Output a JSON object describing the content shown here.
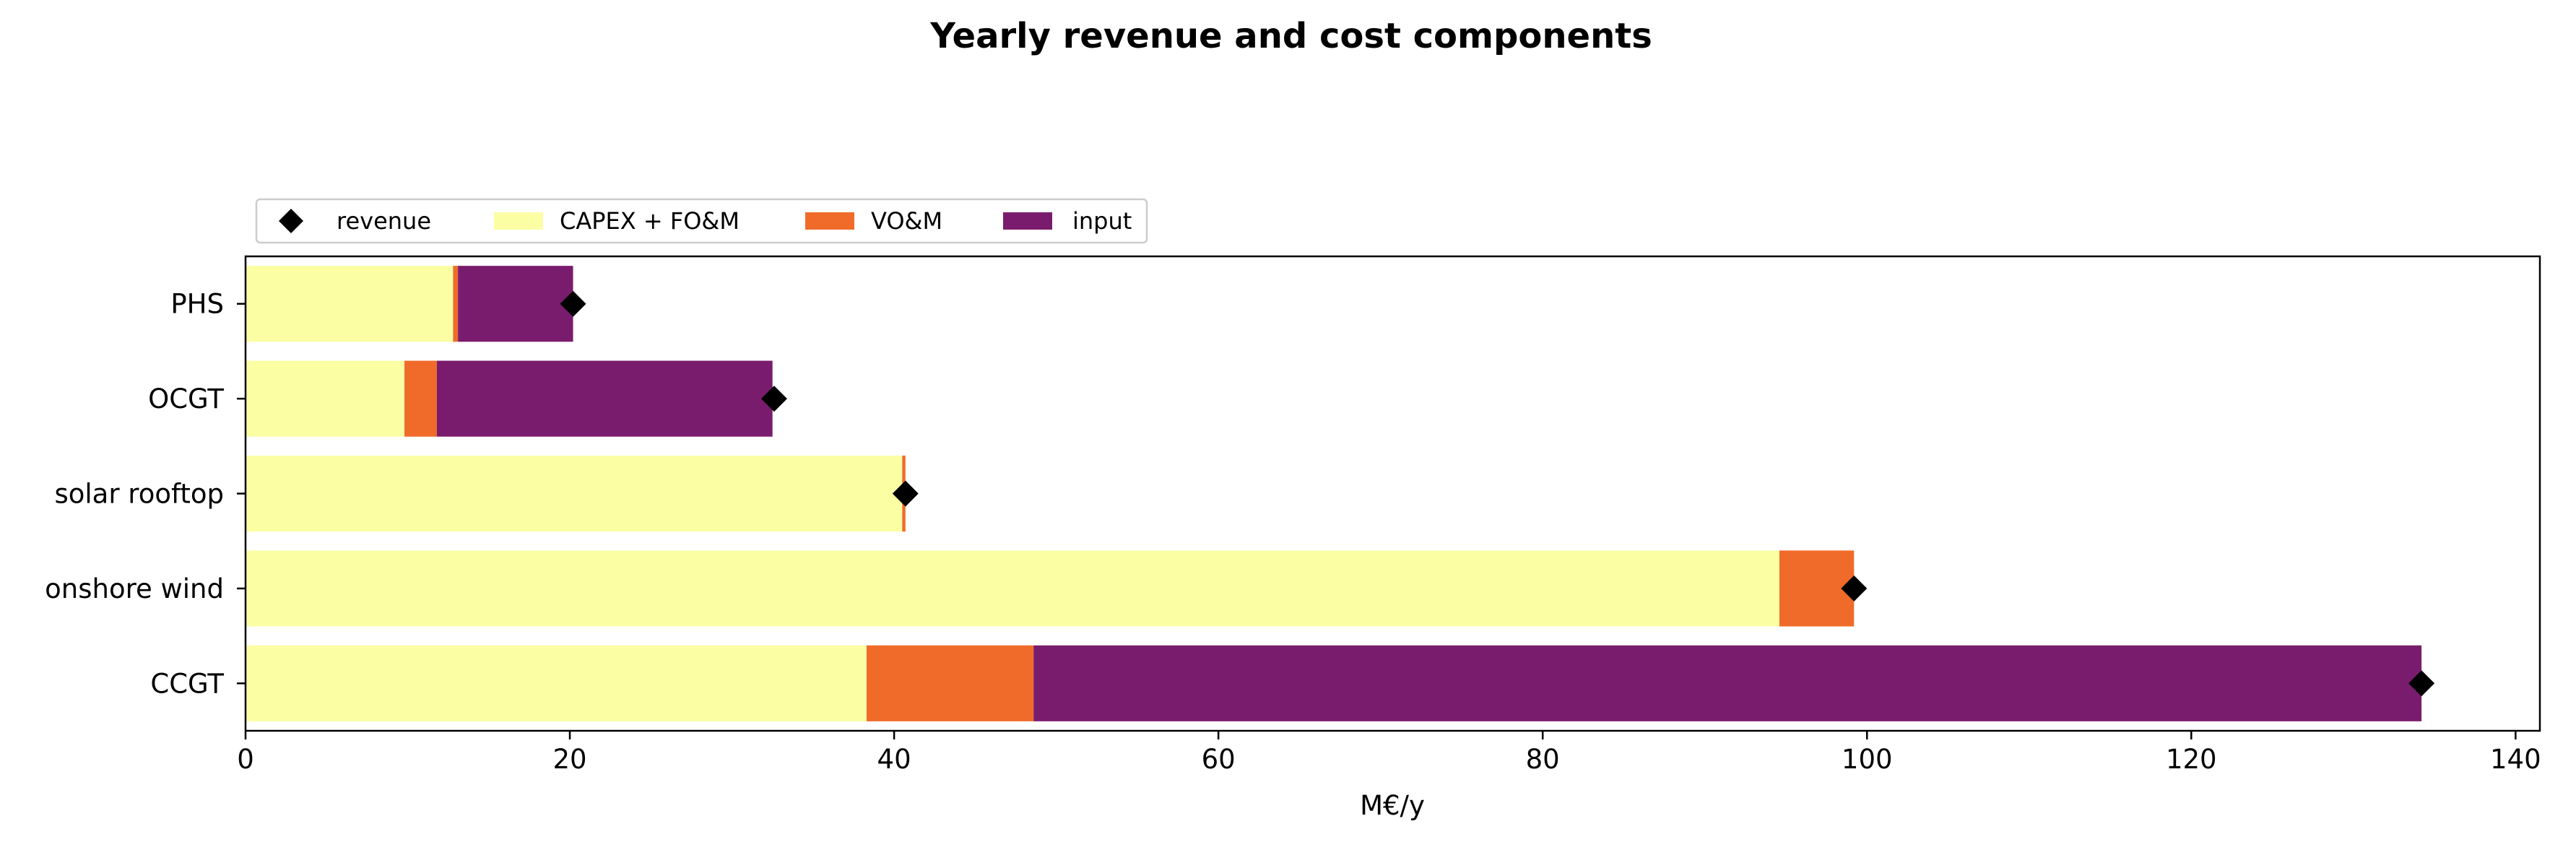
{
  "chart_data": {
    "type": "bar",
    "orientation": "horizontal",
    "stacked": true,
    "title": "Yearly revenue and cost components",
    "xlabel": "M€/y",
    "ylabel": "",
    "xlim": [
      0,
      141.5
    ],
    "xticks": [
      0,
      20,
      40,
      60,
      80,
      100,
      120,
      140
    ],
    "grid": false,
    "legend_position": "top-left, above plot",
    "categories": [
      "CCGT",
      "onshore wind",
      "solar rooftop",
      "OCGT",
      "PHS"
    ],
    "series": [
      {
        "name": "CAPEX + FO&M",
        "color": "#fcfea4",
        "values": [
          38.3,
          94.6,
          40.5,
          9.8,
          12.8
        ]
      },
      {
        "name": "VO&M",
        "color": "#f06b2a",
        "values": [
          10.3,
          4.6,
          0.2,
          2.0,
          0.3
        ]
      },
      {
        "name": "input",
        "color": "#7a1c6d",
        "values": [
          85.6,
          0.0,
          0.0,
          20.7,
          7.1
        ]
      }
    ],
    "markers": {
      "name": "revenue",
      "color": "#000000",
      "shape": "diamond",
      "values": [
        134.2,
        99.2,
        40.7,
        32.6,
        20.2
      ]
    },
    "legend_order": [
      "revenue",
      "CAPEX + FO&M",
      "VO&M",
      "input"
    ]
  }
}
